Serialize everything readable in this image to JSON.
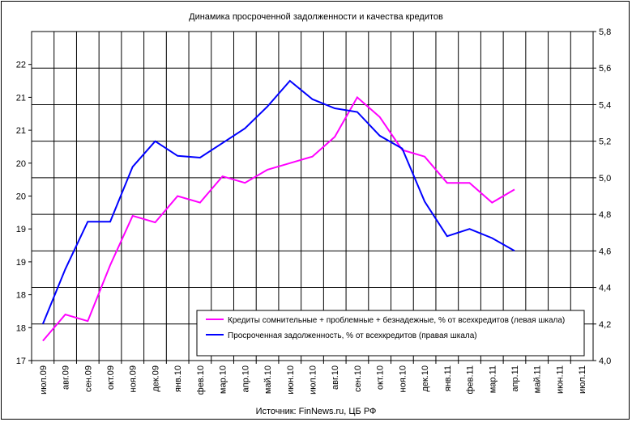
{
  "chart_data": {
    "type": "line",
    "title": "Динамика просроченной задолженности и качества кредитов",
    "source_note": "Источник: FinNews.ru, ЦБ РФ",
    "categories": [
      "июл.09",
      "авг.09",
      "сен.09",
      "окт.09",
      "ноя.09",
      "дек.09",
      "янв.10",
      "фев.10",
      "мар.10",
      "апр.10",
      "май.10",
      "июн.10",
      "июл.10",
      "авг.10",
      "сен.10",
      "окт.10",
      "ноя.10",
      "дек.10",
      "янв.11",
      "фев.11",
      "мар.11",
      "апр.11",
      "май.11",
      "июн.11",
      "июл.11"
    ],
    "left_axis": {
      "ylim": [
        17,
        22
      ],
      "ticks": [
        {
          "value": 17.0,
          "label": "17"
        },
        {
          "value": 17.5,
          "label": "18"
        },
        {
          "value": 18.0,
          "label": "18"
        },
        {
          "value": 18.5,
          "label": "19"
        },
        {
          "value": 19.0,
          "label": "19"
        },
        {
          "value": 19.5,
          "label": "20"
        },
        {
          "value": 20.0,
          "label": "20"
        },
        {
          "value": 20.5,
          "label": "21"
        },
        {
          "value": 21.0,
          "label": "21"
        },
        {
          "value": 21.5,
          "label": "22"
        }
      ]
    },
    "right_axis": {
      "ylim": [
        4.0,
        5.8
      ],
      "ticks": [
        "4,0",
        "4,2",
        "4,4",
        "4,6",
        "4,8",
        "5,0",
        "5,2",
        "5,4",
        "5,6",
        "5,8"
      ]
    },
    "series": [
      {
        "name": "Кредиты сомнительные + проблемные + безнадежные, % от всехкредитов (левая шкала)",
        "axis": "left",
        "color": "#ff00ff",
        "values": [
          17.3,
          17.7,
          17.6,
          18.45,
          19.2,
          19.1,
          19.5,
          19.4,
          19.8,
          19.7,
          19.9,
          20.0,
          20.1,
          20.4,
          21.0,
          20.7,
          20.2,
          20.1,
          19.7,
          19.7,
          19.4,
          19.6,
          null,
          null,
          null
        ]
      },
      {
        "name": "Просроченная задолженность, % от всехкредитов (правая шкала)",
        "axis": "right",
        "color": "#0000ff",
        "values": [
          4.2,
          4.5,
          4.76,
          4.76,
          5.06,
          5.2,
          5.12,
          5.11,
          5.19,
          5.27,
          5.39,
          5.53,
          5.43,
          5.38,
          5.36,
          5.23,
          5.16,
          4.87,
          4.68,
          4.72,
          4.67,
          4.6,
          null,
          null,
          null
        ]
      }
    ],
    "grid": true,
    "legend_position": "bottom-right"
  }
}
